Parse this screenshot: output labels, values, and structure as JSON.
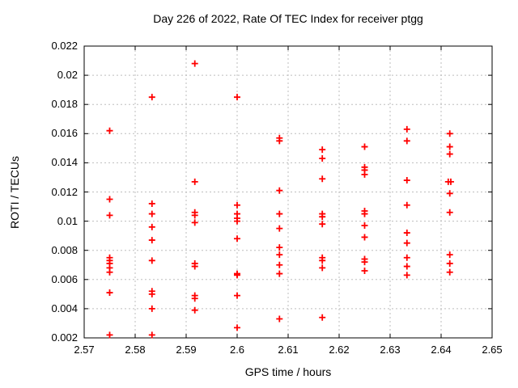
{
  "chart_data": {
    "type": "scatter",
    "title": "Day 226 of 2022, Rate Of TEC Index for receiver ptgg",
    "xlabel": "GPS time / hours",
    "ylabel": "ROTI / TECUs",
    "xlim": [
      2.57,
      2.65
    ],
    "ylim": [
      0.002,
      0.022
    ],
    "xticks": [
      2.57,
      2.58,
      2.59,
      2.6,
      2.61,
      2.62,
      2.63,
      2.64,
      2.65
    ],
    "xtick_labels": [
      "2.57",
      "2.58",
      "2.59",
      "2.6",
      "2.61",
      "2.62",
      "2.63",
      "2.64",
      "2.65"
    ],
    "yticks": [
      0.002,
      0.004,
      0.006,
      0.008,
      0.01,
      0.012,
      0.014,
      0.016,
      0.018,
      0.02,
      0.022
    ],
    "ytick_labels": [
      "0.002",
      "0.004",
      "0.006",
      "0.008",
      "0.01",
      "0.012",
      "0.014",
      "0.016",
      "0.018",
      "0.02",
      "0.022"
    ],
    "grid": true,
    "legend": "none",
    "marker_color": "#ff0000",
    "grid_color": "#bdbdbd",
    "axis_color": "#000000",
    "series": [
      {
        "name": "ROTI",
        "points": [
          [
            2.575,
            0.0162
          ],
          [
            2.575,
            0.0115
          ],
          [
            2.575,
            0.0104
          ],
          [
            2.575,
            0.0075
          ],
          [
            2.575,
            0.0073
          ],
          [
            2.575,
            0.0071
          ],
          [
            2.575,
            0.0068
          ],
          [
            2.575,
            0.0065
          ],
          [
            2.575,
            0.0051
          ],
          [
            2.575,
            0.0022
          ],
          [
            2.5833,
            0.0185
          ],
          [
            2.5833,
            0.0112
          ],
          [
            2.5833,
            0.0105
          ],
          [
            2.5833,
            0.0096
          ],
          [
            2.5833,
            0.0087
          ],
          [
            2.5833,
            0.0073
          ],
          [
            2.5833,
            0.0052
          ],
          [
            2.5833,
            0.005
          ],
          [
            2.5833,
            0.004
          ],
          [
            2.5833,
            0.0022
          ],
          [
            2.5917,
            0.0208
          ],
          [
            2.5917,
            0.0127
          ],
          [
            2.5917,
            0.0106
          ],
          [
            2.5917,
            0.0104
          ],
          [
            2.5917,
            0.0099
          ],
          [
            2.5917,
            0.0071
          ],
          [
            2.5917,
            0.0069
          ],
          [
            2.5917,
            0.0049
          ],
          [
            2.5917,
            0.0047
          ],
          [
            2.5917,
            0.0039
          ],
          [
            2.6,
            0.0185
          ],
          [
            2.6,
            0.0111
          ],
          [
            2.6,
            0.0105
          ],
          [
            2.6,
            0.0102
          ],
          [
            2.6,
            0.01
          ],
          [
            2.6,
            0.0088
          ],
          [
            2.6,
            0.0064
          ],
          [
            2.6,
            0.0063
          ],
          [
            2.6,
            0.0049
          ],
          [
            2.6,
            0.0027
          ],
          [
            2.6083,
            0.0157
          ],
          [
            2.6083,
            0.0155
          ],
          [
            2.6083,
            0.0121
          ],
          [
            2.6083,
            0.0105
          ],
          [
            2.6083,
            0.0095
          ],
          [
            2.6083,
            0.0082
          ],
          [
            2.6083,
            0.0077
          ],
          [
            2.6083,
            0.007
          ],
          [
            2.6083,
            0.0064
          ],
          [
            2.6083,
            0.0033
          ],
          [
            2.6167,
            0.0149
          ],
          [
            2.6167,
            0.0143
          ],
          [
            2.6167,
            0.0129
          ],
          [
            2.6167,
            0.0105
          ],
          [
            2.6167,
            0.0103
          ],
          [
            2.6167,
            0.0098
          ],
          [
            2.6167,
            0.0075
          ],
          [
            2.6167,
            0.0073
          ],
          [
            2.6167,
            0.0068
          ],
          [
            2.6167,
            0.0034
          ],
          [
            2.625,
            0.0151
          ],
          [
            2.625,
            0.0137
          ],
          [
            2.625,
            0.0135
          ],
          [
            2.625,
            0.0132
          ],
          [
            2.625,
            0.0107
          ],
          [
            2.625,
            0.0105
          ],
          [
            2.625,
            0.0097
          ],
          [
            2.625,
            0.0089
          ],
          [
            2.625,
            0.0074
          ],
          [
            2.625,
            0.0072
          ],
          [
            2.625,
            0.0066
          ],
          [
            2.6333,
            0.0163
          ],
          [
            2.6333,
            0.0155
          ],
          [
            2.6333,
            0.0128
          ],
          [
            2.6333,
            0.0111
          ],
          [
            2.6333,
            0.0092
          ],
          [
            2.6333,
            0.0085
          ],
          [
            2.6333,
            0.0075
          ],
          [
            2.6333,
            0.0069
          ],
          [
            2.6333,
            0.0063
          ],
          [
            2.6417,
            0.016
          ],
          [
            2.6417,
            0.0151
          ],
          [
            2.6417,
            0.0146
          ],
          [
            2.6414,
            0.0127
          ],
          [
            2.6419,
            0.0127
          ],
          [
            2.6417,
            0.0119
          ],
          [
            2.6417,
            0.0106
          ],
          [
            2.6417,
            0.0077
          ],
          [
            2.6417,
            0.0071
          ],
          [
            2.6417,
            0.0065
          ]
        ]
      }
    ]
  }
}
